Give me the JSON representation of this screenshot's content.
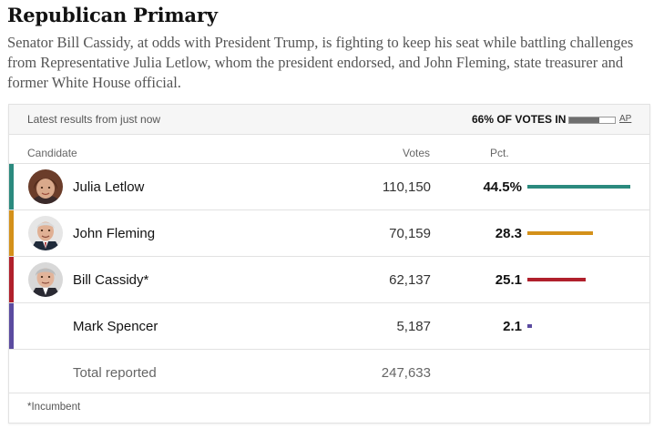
{
  "header": {
    "title": "Republican Primary",
    "description": "Senator Bill Cassidy, at odds with President Trump, is fighting to keep his seat while battling challenges from Representative Julia Letlow, whom the president endorsed, and John Fleming, state treasurer and former White House official."
  },
  "results": {
    "latest_label": "Latest results from just now",
    "votes_in_label": "66% OF VOTES IN",
    "votes_in_fraction": 0.66,
    "source_label": "AP",
    "columns": {
      "candidate": "Candidate",
      "votes": "Votes",
      "pct": "Pct."
    },
    "candidates": [
      {
        "name": "Julia Letlow",
        "votes": "110,150",
        "pct": "44.5%",
        "pct_value": 44.5,
        "color": "#2b8a7e",
        "avatar": "photo-letlow"
      },
      {
        "name": "John Fleming",
        "votes": "70,159",
        "pct": "28.3",
        "pct_value": 28.3,
        "color": "#d4911a",
        "avatar": "photo-fleming"
      },
      {
        "name": "Bill Cassidy*",
        "votes": "62,137",
        "pct": "25.1",
        "pct_value": 25.1,
        "color": "#b0202c",
        "avatar": "photo-cassidy"
      },
      {
        "name": "Mark Spencer",
        "votes": "5,187",
        "pct": "2.1",
        "pct_value": 2.1,
        "color": "#5b4ba0",
        "avatar": ""
      }
    ],
    "total_label": "Total reported",
    "total_votes": "247,633",
    "footnote": "*Incumbent"
  }
}
